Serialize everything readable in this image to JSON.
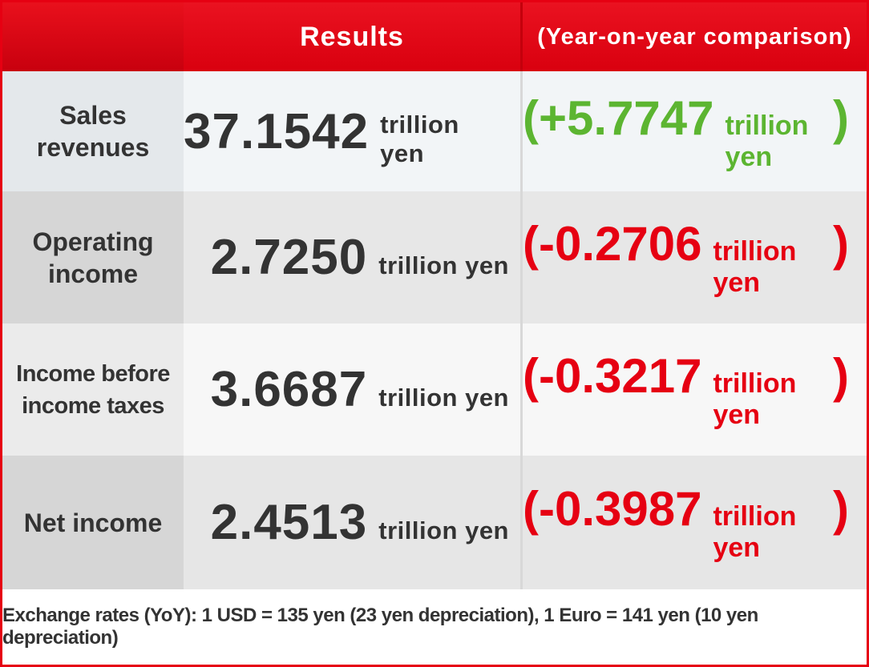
{
  "header": {
    "results_label": "Results",
    "yoy_label": "(Year-on-year comparison)"
  },
  "rows": [
    {
      "label_line1": "Sales",
      "label_line2": "revenues",
      "value": "37.1542",
      "unit": "trillion yen",
      "yoy_open": "(",
      "yoy_value": "+5.7747",
      "yoy_unit": "trillion yen",
      "yoy_close": ")"
    },
    {
      "label_line1": "Operating",
      "label_line2": "income",
      "value": "2.7250",
      "unit": "trillion yen",
      "yoy_open": "(",
      "yoy_value": "-0.2706",
      "yoy_unit": "trillion yen",
      "yoy_close": ")"
    },
    {
      "label_line1": "Income before",
      "label_line2": "income taxes",
      "value": "3.6687",
      "unit": "trillion yen",
      "yoy_open": "(",
      "yoy_value": "-0.3217",
      "yoy_unit": "trillion yen",
      "yoy_close": ")"
    },
    {
      "label_line1": "Net income",
      "label_line2": "",
      "value": "2.4513",
      "unit": "trillion yen",
      "yoy_open": "(",
      "yoy_value": "-0.3987",
      "yoy_unit": "trillion yen",
      "yoy_close": ")"
    }
  ],
  "footer": {
    "note": "Exchange rates (YoY): 1 USD = 135 yen (23 yen depreciation), 1 Euro = 141 yen (10 yen depreciation)"
  },
  "colors": {
    "header_red": "#e60012",
    "positive_green": "#5cb531",
    "negative_red": "#e60012",
    "text_dark": "#333333"
  }
}
